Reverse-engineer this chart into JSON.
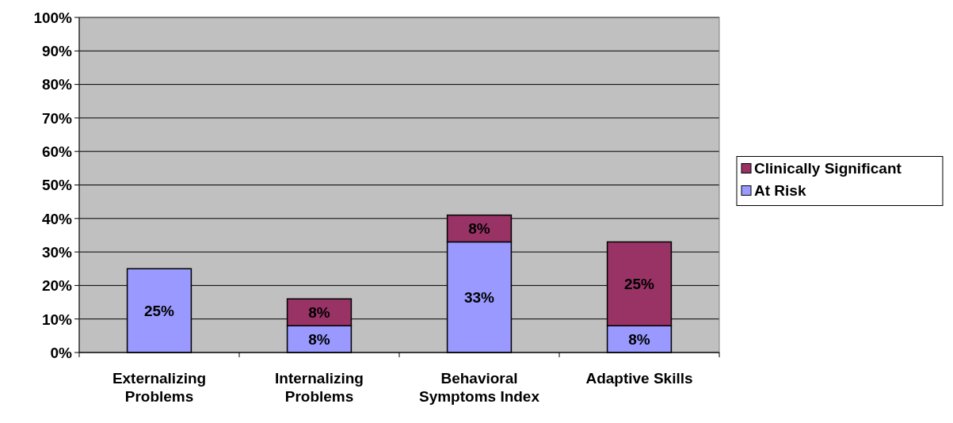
{
  "chart_data": {
    "type": "bar",
    "stacked": true,
    "categories": [
      "Externalizing Problems",
      "Internalizing Problems",
      "Behavioral Symptoms Index",
      "Adaptive Skills"
    ],
    "series": [
      {
        "name": "At Risk",
        "color": "#9999ff",
        "values": [
          25,
          8,
          33,
          8
        ],
        "value_labels": [
          "25%",
          "8%",
          "33%",
          "8%"
        ]
      },
      {
        "name": "Clinically Significant",
        "color": "#993366",
        "values": [
          null,
          8,
          8,
          25
        ],
        "value_labels": [
          null,
          "8%",
          "8%",
          "25%"
        ]
      }
    ],
    "ylim": [
      0,
      100
    ],
    "yticks": [
      {
        "value": 0,
        "label": "0%"
      },
      {
        "value": 10,
        "label": "10%"
      },
      {
        "value": 20,
        "label": "20%"
      },
      {
        "value": 30,
        "label": "30%"
      },
      {
        "value": 40,
        "label": "40%"
      },
      {
        "value": 50,
        "label": "50%"
      },
      {
        "value": 60,
        "label": "60%"
      },
      {
        "value": 70,
        "label": "70%"
      },
      {
        "value": 80,
        "label": "80%"
      },
      {
        "value": 90,
        "label": "90%"
      },
      {
        "value": 100,
        "label": "100%"
      }
    ],
    "grid": "y",
    "legend": "right"
  }
}
